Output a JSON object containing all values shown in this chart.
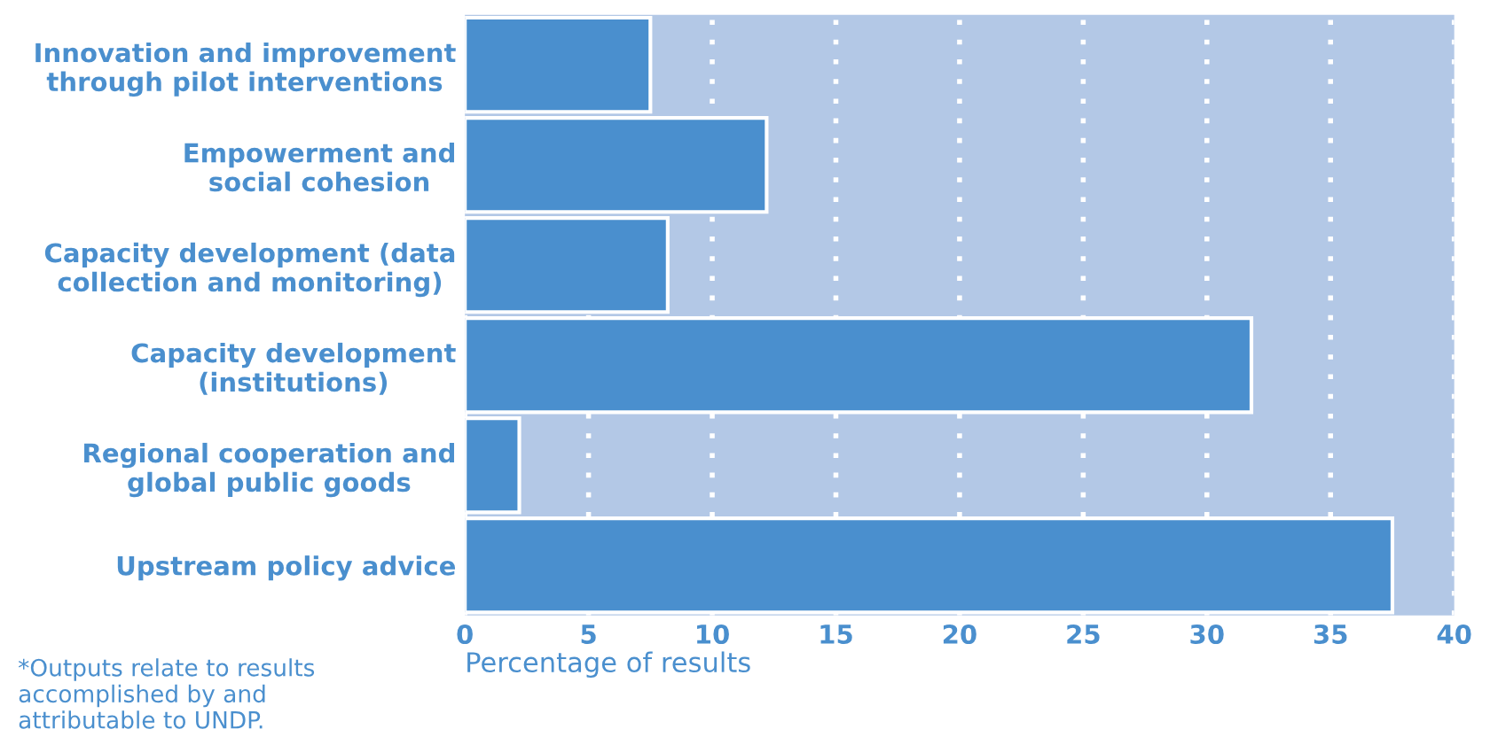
{
  "chart_data": {
    "type": "bar",
    "orientation": "horizontal",
    "categories": [
      "Innovation and improvement\nthrough pilot interventions",
      "Empowerment and\nsocial cohesion",
      "Capacity development (data\ncollection and monitoring)",
      "Capacity development\n(institutions)",
      "Regional cooperation and\nglobal public goods",
      "Upstream policy advice"
    ],
    "values": [
      7.5,
      12.2,
      8.2,
      31.8,
      2.2,
      37.5
    ],
    "color": "#4a8fce",
    "xlim": [
      0,
      40
    ],
    "xticks": [
      0,
      5,
      10,
      15,
      20,
      25,
      30,
      35,
      40
    ],
    "xlabel": "Percentage of results",
    "grid": "x",
    "annotations": [
      "*Outputs relate to results\naccomplished by and\nattributable to UNDP."
    ]
  }
}
